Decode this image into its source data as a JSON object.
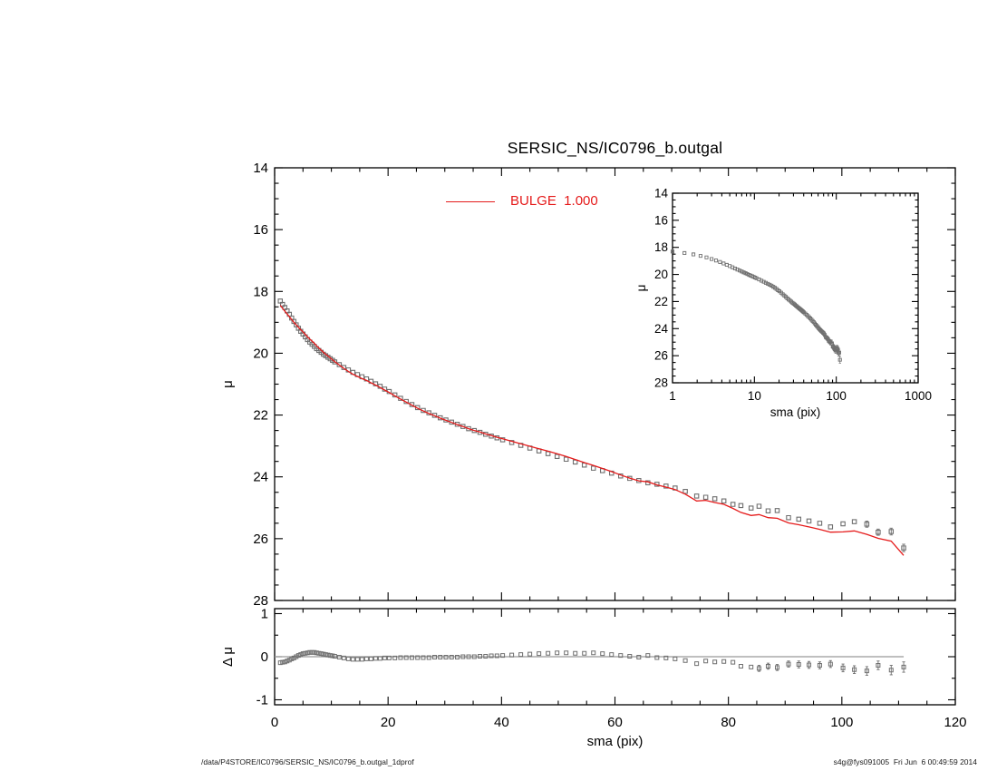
{
  "footer": {
    "left": "/data/P4STORE/IC0796/SERSIC_NS/IC0796_b.outgal_1dprof",
    "right": "s4g@fys091005  Fri Jun  6 00:49:59 2014"
  },
  "colors": {
    "model_red": "#e51b1b",
    "marker_gray": "#6f6f6f",
    "zero_line_gray": "#999999",
    "frame_black": "#000000",
    "background": "#ffffff"
  },
  "chart_data": [
    {
      "id": "main-profile",
      "type": "scatter",
      "title": "SERSIC_NS/IC0796_b.outgal",
      "xlabel": "sma (pix)",
      "ylabel": "μ",
      "xlim": [
        0,
        120
      ],
      "ylim": [
        28,
        14
      ],
      "y_axis_inverted": true,
      "grid": false,
      "xticks": [
        0,
        20,
        40,
        60,
        80,
        100,
        120
      ],
      "yticks": [
        14,
        16,
        18,
        20,
        22,
        24,
        26,
        28
      ],
      "marker": "open-square",
      "legend": {
        "label": "BULGE  1.000",
        "color": "#e51b1b",
        "position": "top-center"
      },
      "model_line": {
        "name": "BULGE",
        "color": "#e51b1b",
        "rule": "mu - dmu"
      },
      "series": {
        "sma": [
          1.0,
          1.4,
          1.8,
          2.2,
          2.6,
          3.0,
          3.4,
          3.8,
          4.2,
          4.6,
          5.0,
          5.4,
          5.8,
          6.2,
          6.6,
          7.0,
          7.4,
          7.8,
          8.2,
          8.6,
          9.0,
          9.4,
          9.8,
          10.2,
          10.6,
          11.4,
          12.2,
          13.0,
          13.8,
          14.6,
          15.4,
          16.2,
          17.0,
          17.8,
          18.6,
          19.4,
          20.2,
          21.2,
          22.2,
          23.2,
          24.2,
          25.2,
          26.2,
          27.2,
          28.2,
          29.2,
          30.2,
          31.2,
          32.2,
          33.2,
          34.2,
          35.2,
          36.2,
          37.2,
          38.2,
          39.2,
          40.2,
          41.8,
          43.4,
          45.0,
          46.6,
          48.2,
          49.8,
          51.4,
          53.0,
          54.6,
          56.2,
          57.8,
          59.4,
          61.0,
          62.6,
          64.2,
          65.8,
          67.4,
          69.0,
          70.6,
          72.4,
          74.4,
          76.0,
          77.6,
          79.2,
          80.8,
          82.2,
          84.0,
          85.4,
          87.0,
          88.6,
          90.6,
          92.4,
          94.2,
          96.1,
          98.0,
          100.2,
          102.2,
          104.4,
          106.4,
          108.7,
          110.9
        ],
        "mu": [
          18.31,
          18.42,
          18.52,
          18.63,
          18.74,
          18.86,
          18.97,
          19.08,
          19.19,
          19.29,
          19.38,
          19.47,
          19.56,
          19.64,
          19.71,
          19.78,
          19.85,
          19.91,
          19.97,
          20.03,
          20.08,
          20.13,
          20.18,
          20.23,
          20.28,
          20.37,
          20.46,
          20.54,
          20.62,
          20.69,
          20.76,
          20.83,
          20.91,
          20.99,
          21.07,
          21.16,
          21.24,
          21.35,
          21.46,
          21.56,
          21.66,
          21.76,
          21.85,
          21.93,
          22.01,
          22.09,
          22.16,
          22.23,
          22.3,
          22.37,
          22.44,
          22.5,
          22.56,
          22.62,
          22.68,
          22.74,
          22.8,
          22.89,
          22.98,
          23.07,
          23.16,
          23.25,
          23.34,
          23.43,
          23.52,
          23.62,
          23.72,
          23.8,
          23.88,
          23.97,
          24.05,
          24.12,
          24.19,
          24.24,
          24.3,
          24.36,
          24.47,
          24.62,
          24.66,
          24.71,
          24.78,
          24.89,
          24.93,
          25.01,
          24.95,
          25.1,
          25.09,
          25.32,
          25.37,
          25.43,
          25.5,
          25.62,
          25.52,
          25.45,
          25.53,
          25.79,
          25.77,
          26.3
        ],
        "dmu": [
          -0.14,
          -0.13,
          -0.12,
          -0.1,
          -0.08,
          -0.05,
          -0.03,
          0.0,
          0.03,
          0.05,
          0.07,
          0.08,
          0.09,
          0.1,
          0.1,
          0.1,
          0.09,
          0.08,
          0.07,
          0.06,
          0.05,
          0.04,
          0.03,
          0.02,
          0.01,
          -0.01,
          -0.03,
          -0.05,
          -0.06,
          -0.06,
          -0.06,
          -0.05,
          -0.05,
          -0.04,
          -0.04,
          -0.03,
          -0.03,
          -0.03,
          -0.02,
          -0.02,
          -0.02,
          -0.02,
          -0.02,
          -0.02,
          -0.01,
          -0.01,
          -0.01,
          -0.01,
          -0.01,
          0.0,
          0.0,
          0.0,
          0.01,
          0.01,
          0.02,
          0.02,
          0.03,
          0.04,
          0.05,
          0.06,
          0.07,
          0.08,
          0.09,
          0.09,
          0.08,
          0.08,
          0.09,
          0.07,
          0.05,
          0.03,
          0.01,
          -0.01,
          0.03,
          -0.02,
          -0.03,
          -0.05,
          -0.09,
          -0.16,
          -0.1,
          -0.12,
          -0.11,
          -0.13,
          -0.22,
          -0.24,
          -0.27,
          -0.22,
          -0.25,
          -0.17,
          -0.18,
          -0.19,
          -0.2,
          -0.17,
          -0.26,
          -0.3,
          -0.33,
          -0.2,
          -0.31,
          -0.24
        ],
        "err": [
          0.02,
          0.02,
          0.02,
          0.02,
          0.02,
          0.02,
          0.02,
          0.02,
          0.02,
          0.02,
          0.02,
          0.02,
          0.02,
          0.02,
          0.02,
          0.02,
          0.02,
          0.02,
          0.02,
          0.02,
          0.02,
          0.02,
          0.02,
          0.02,
          0.02,
          0.02,
          0.02,
          0.02,
          0.02,
          0.02,
          0.02,
          0.02,
          0.02,
          0.02,
          0.02,
          0.02,
          0.02,
          0.02,
          0.02,
          0.02,
          0.02,
          0.02,
          0.02,
          0.02,
          0.02,
          0.02,
          0.02,
          0.02,
          0.02,
          0.02,
          0.02,
          0.03,
          0.03,
          0.03,
          0.03,
          0.03,
          0.03,
          0.03,
          0.03,
          0.03,
          0.03,
          0.03,
          0.03,
          0.04,
          0.04,
          0.04,
          0.04,
          0.04,
          0.04,
          0.04,
          0.05,
          0.05,
          0.05,
          0.05,
          0.05,
          0.05,
          0.05,
          0.05,
          0.05,
          0.06,
          0.06,
          0.06,
          0.06,
          0.06,
          0.07,
          0.07,
          0.07,
          0.07,
          0.08,
          0.08,
          0.08,
          0.08,
          0.09,
          0.09,
          0.1,
          0.1,
          0.11,
          0.12
        ]
      }
    },
    {
      "id": "inset-log-profile",
      "type": "scatter",
      "xscale": "log",
      "xlabel": "sma (pix)",
      "ylabel": "μ",
      "xlim": [
        1,
        1000
      ],
      "ylim": [
        28,
        14
      ],
      "y_axis_inverted": true,
      "grid": false,
      "xticks": [
        1,
        10,
        100,
        1000
      ],
      "yticks": [
        14,
        16,
        18,
        20,
        22,
        24,
        26,
        28
      ],
      "marker": "open-square",
      "data_ref": "chart_data.0.series"
    },
    {
      "id": "residual-panel",
      "type": "scatter",
      "xlabel": "sma (pix)",
      "ylabel": "Δ μ",
      "xlim": [
        0,
        120
      ],
      "ylim": [
        -1.12,
        1.12
      ],
      "grid": false,
      "xticks": [
        0,
        20,
        40,
        60,
        80,
        100,
        120
      ],
      "yticks": [
        -1,
        0,
        1
      ],
      "zero_line": true,
      "marker": "open-square",
      "data_ref": "chart_data.0.series (dmu vs sma)"
    }
  ]
}
